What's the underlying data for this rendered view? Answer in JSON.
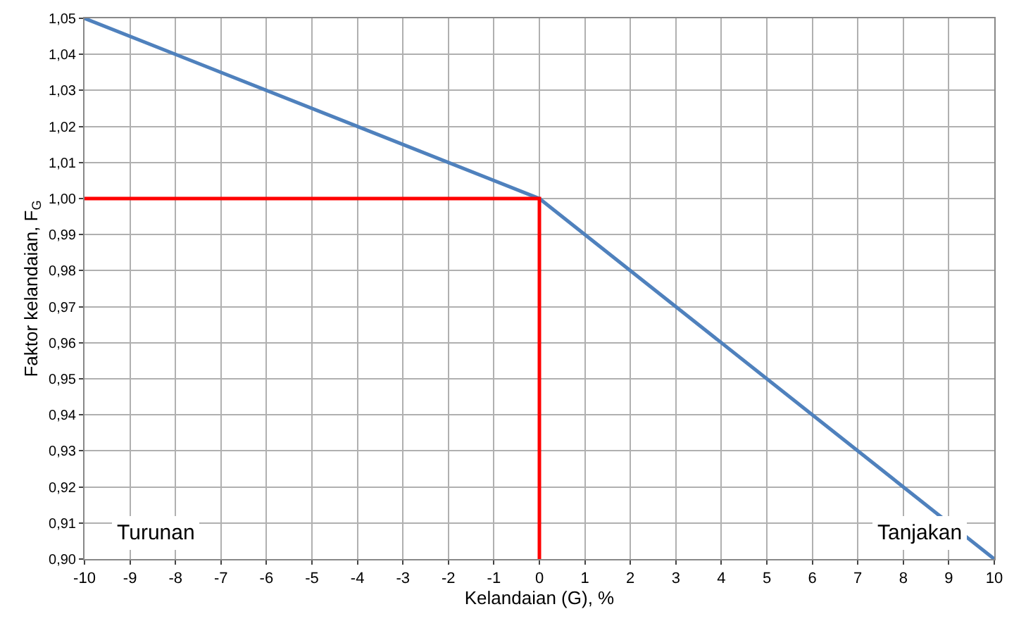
{
  "chart_data": {
    "type": "line",
    "xlabel": "Kelandaian (G), %",
    "ylabel": "Faktor kelandaian, F$_{G}$",
    "series": [
      {
        "x": [
          -10,
          0,
          10
        ],
        "values": [
          1.05,
          1.0,
          0.9
        ],
        "color": "#4f81bd"
      },
      {
        "x": [
          -10,
          0,
          0
        ],
        "values": [
          1.0,
          1.0,
          0.9
        ],
        "color": "#ff0000"
      }
    ],
    "xlim": [
      -10,
      10
    ],
    "xticks": [
      -10,
      -9,
      -8,
      -7,
      -6,
      -5,
      -4,
      -3,
      -2,
      -1,
      0,
      1,
      2,
      3,
      4,
      5,
      6,
      7,
      8,
      9,
      10
    ],
    "ylim": [
      0.9,
      1.05
    ],
    "yticks": [
      {
        "value": 0.9,
        "label": "0,90"
      },
      {
        "value": 0.91,
        "label": "0,91"
      },
      {
        "value": 0.92,
        "label": "0,92"
      },
      {
        "value": 0.93,
        "label": "0,93"
      },
      {
        "value": 0.94,
        "label": "0,94"
      },
      {
        "value": 0.95,
        "label": "0,95"
      },
      {
        "value": 0.96,
        "label": "0,96"
      },
      {
        "value": 0.97,
        "label": "0,97"
      },
      {
        "value": 0.98,
        "label": "0,98"
      },
      {
        "value": 0.99,
        "label": "0,99"
      },
      {
        "value": 1.0,
        "label": "1,00"
      },
      {
        "value": 1.01,
        "label": "1,01"
      },
      {
        "value": 1.02,
        "label": "1,02"
      },
      {
        "value": 1.03,
        "label": "1,03"
      },
      {
        "value": 1.04,
        "label": "1,04"
      },
      {
        "value": 1.05,
        "label": "1,05"
      }
    ],
    "grid": true,
    "legend": false,
    "marker": "none",
    "line_style": "solid",
    "annotations": [
      "Turunan",
      "Tanjakan"
    ]
  }
}
